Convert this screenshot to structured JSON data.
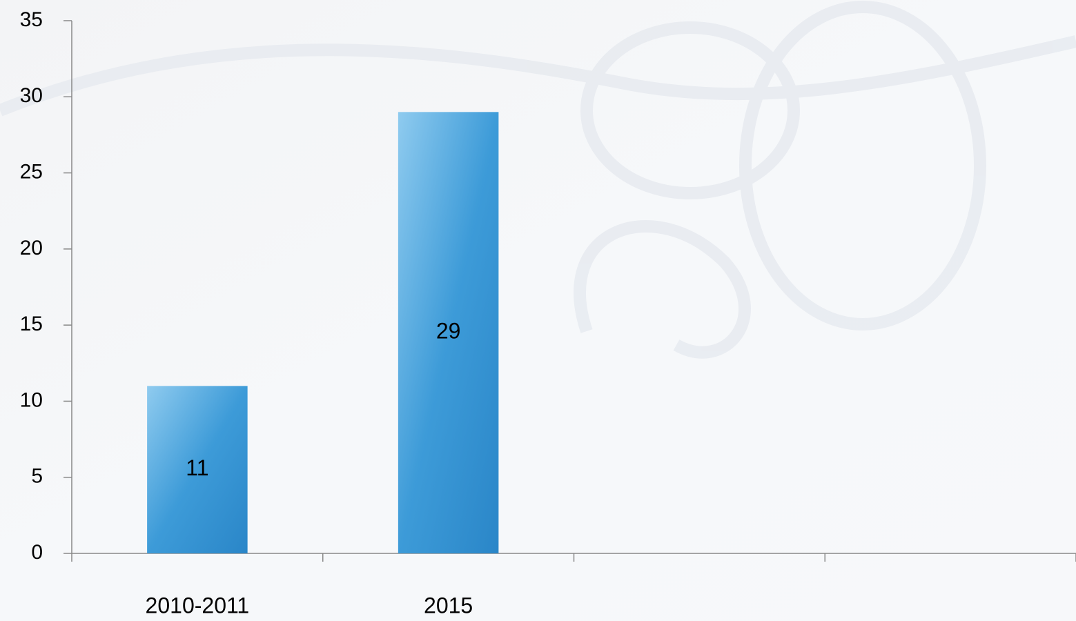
{
  "chart_data": {
    "type": "bar",
    "categories": [
      "2010-2011",
      "2015",
      null,
      null
    ],
    "values": [
      11,
      29,
      null,
      null
    ],
    "color": "#3d9bd8",
    "ylim": [
      0,
      35
    ],
    "yticks": [
      0,
      5,
      10,
      15,
      20,
      25,
      30,
      35
    ],
    "grid": false
  }
}
